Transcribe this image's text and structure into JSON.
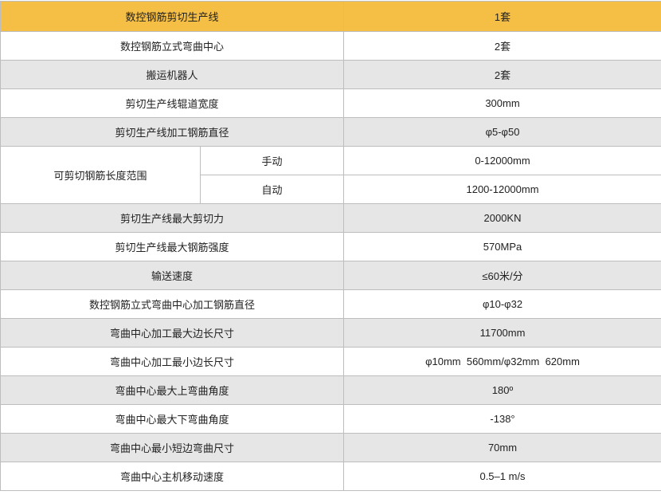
{
  "colors": {
    "header": "#f5be45",
    "gray_row": "#e6e6e6",
    "white_row": "#ffffff",
    "border": "#bdbdbd"
  },
  "header": {
    "label": "数控钢筋剪切生产线",
    "value": "1套"
  },
  "rows": [
    {
      "label": "数控钢筋立式弯曲中心",
      "value": "2套"
    },
    {
      "label": "搬运机器人",
      "value": "2套"
    },
    {
      "label": "剪切生产线辊道宽度",
      "value": "300mm"
    },
    {
      "label": "剪切生产线加工钢筋直径",
      "value": "φ5-φ50"
    }
  ],
  "merged": {
    "label": "可剪切钢筋长度范围",
    "sub": [
      {
        "label": "手动",
        "value": "0-12000mm"
      },
      {
        "label": "自动",
        "value": "1200-12000mm"
      }
    ]
  },
  "rows2": [
    {
      "label": "剪切生产线最大剪切力",
      "value": "2000KN"
    },
    {
      "label": "剪切生产线最大钢筋强度",
      "value": "570MPa"
    },
    {
      "label": "输送速度",
      "value": "≤60米/分"
    },
    {
      "label": "数控钢筋立式弯曲中心加工钢筋直径",
      "value": "φ10-φ32"
    },
    {
      "label": "弯曲中心加工最大边长尺寸",
      "value": "11700mm"
    },
    {
      "label": "弯曲中心加工最小边长尺寸",
      "value": "φ10mm  560mm/φ32mm  620mm"
    },
    {
      "label": "弯曲中心最大上弯曲角度",
      "value": "180º"
    },
    {
      "label": "弯曲中心最大下弯曲角度",
      "value": "-138°"
    },
    {
      "label": "弯曲中心最小短边弯曲尺寸",
      "value": "70mm"
    },
    {
      "label": "弯曲中心主机移动速度",
      "value": "0.5–1 m/s"
    }
  ]
}
